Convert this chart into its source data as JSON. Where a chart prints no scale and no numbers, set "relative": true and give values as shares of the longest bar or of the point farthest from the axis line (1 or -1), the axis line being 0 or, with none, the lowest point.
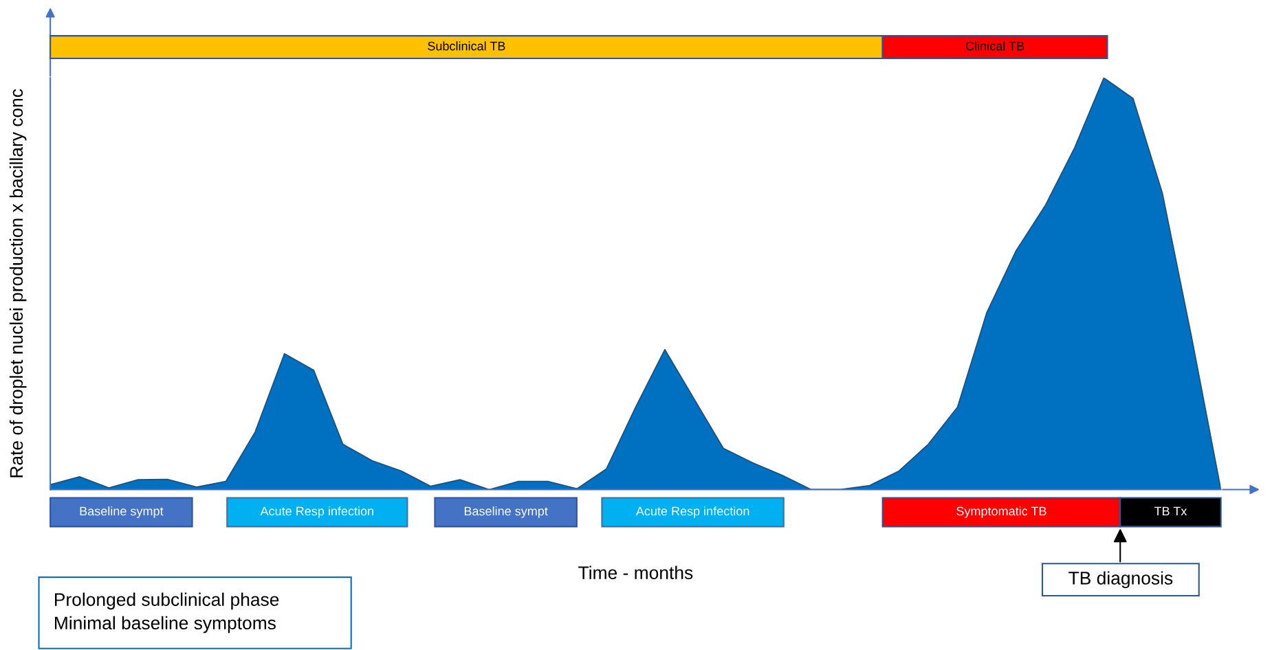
{
  "chart_data": {
    "type": "area",
    "relative": true,
    "categories": [
      null,
      null,
      null,
      null,
      null,
      null,
      null,
      null,
      null,
      null,
      null,
      null,
      null,
      null,
      null,
      null,
      null,
      null,
      null,
      null,
      null,
      null,
      null,
      null,
      null,
      null,
      null,
      null,
      null,
      null,
      null,
      null,
      null,
      null,
      null,
      null,
      null,
      null,
      null,
      null,
      null
    ],
    "series": [
      {
        "color": "#0070c0",
        "values": [
          0.012,
          0.031,
          0.004,
          0.024,
          0.025,
          0.006,
          0.02,
          0.14,
          0.33,
          0.29,
          0.11,
          0.07,
          0.045,
          0.008,
          0.024,
          0.0,
          0.02,
          0.02,
          0.002,
          0.05,
          0.2,
          0.34,
          0.22,
          0.1,
          0.065,
          0.035,
          0.0,
          0.0,
          0.01,
          0.045,
          0.11,
          0.2,
          0.43,
          0.58,
          0.69,
          0.83,
          1.0,
          0.95,
          0.72,
          0.37,
          0.0
        ]
      }
    ],
    "xlabel": "Time - months",
    "ylabel": "Rate of droplet nuclei production x bacillary conc",
    "annotations": [
      "Subclinical TB",
      "Clinical TB",
      "Baseline sympt",
      "Acute Resp infection",
      "Baseline sympt",
      "Acute Resp infection",
      "Symptomatic TB",
      "TB Tx",
      "TB diagnosis",
      "Prolonged subclinical phase\nMinimal baseline symptoms"
    ]
  }
}
